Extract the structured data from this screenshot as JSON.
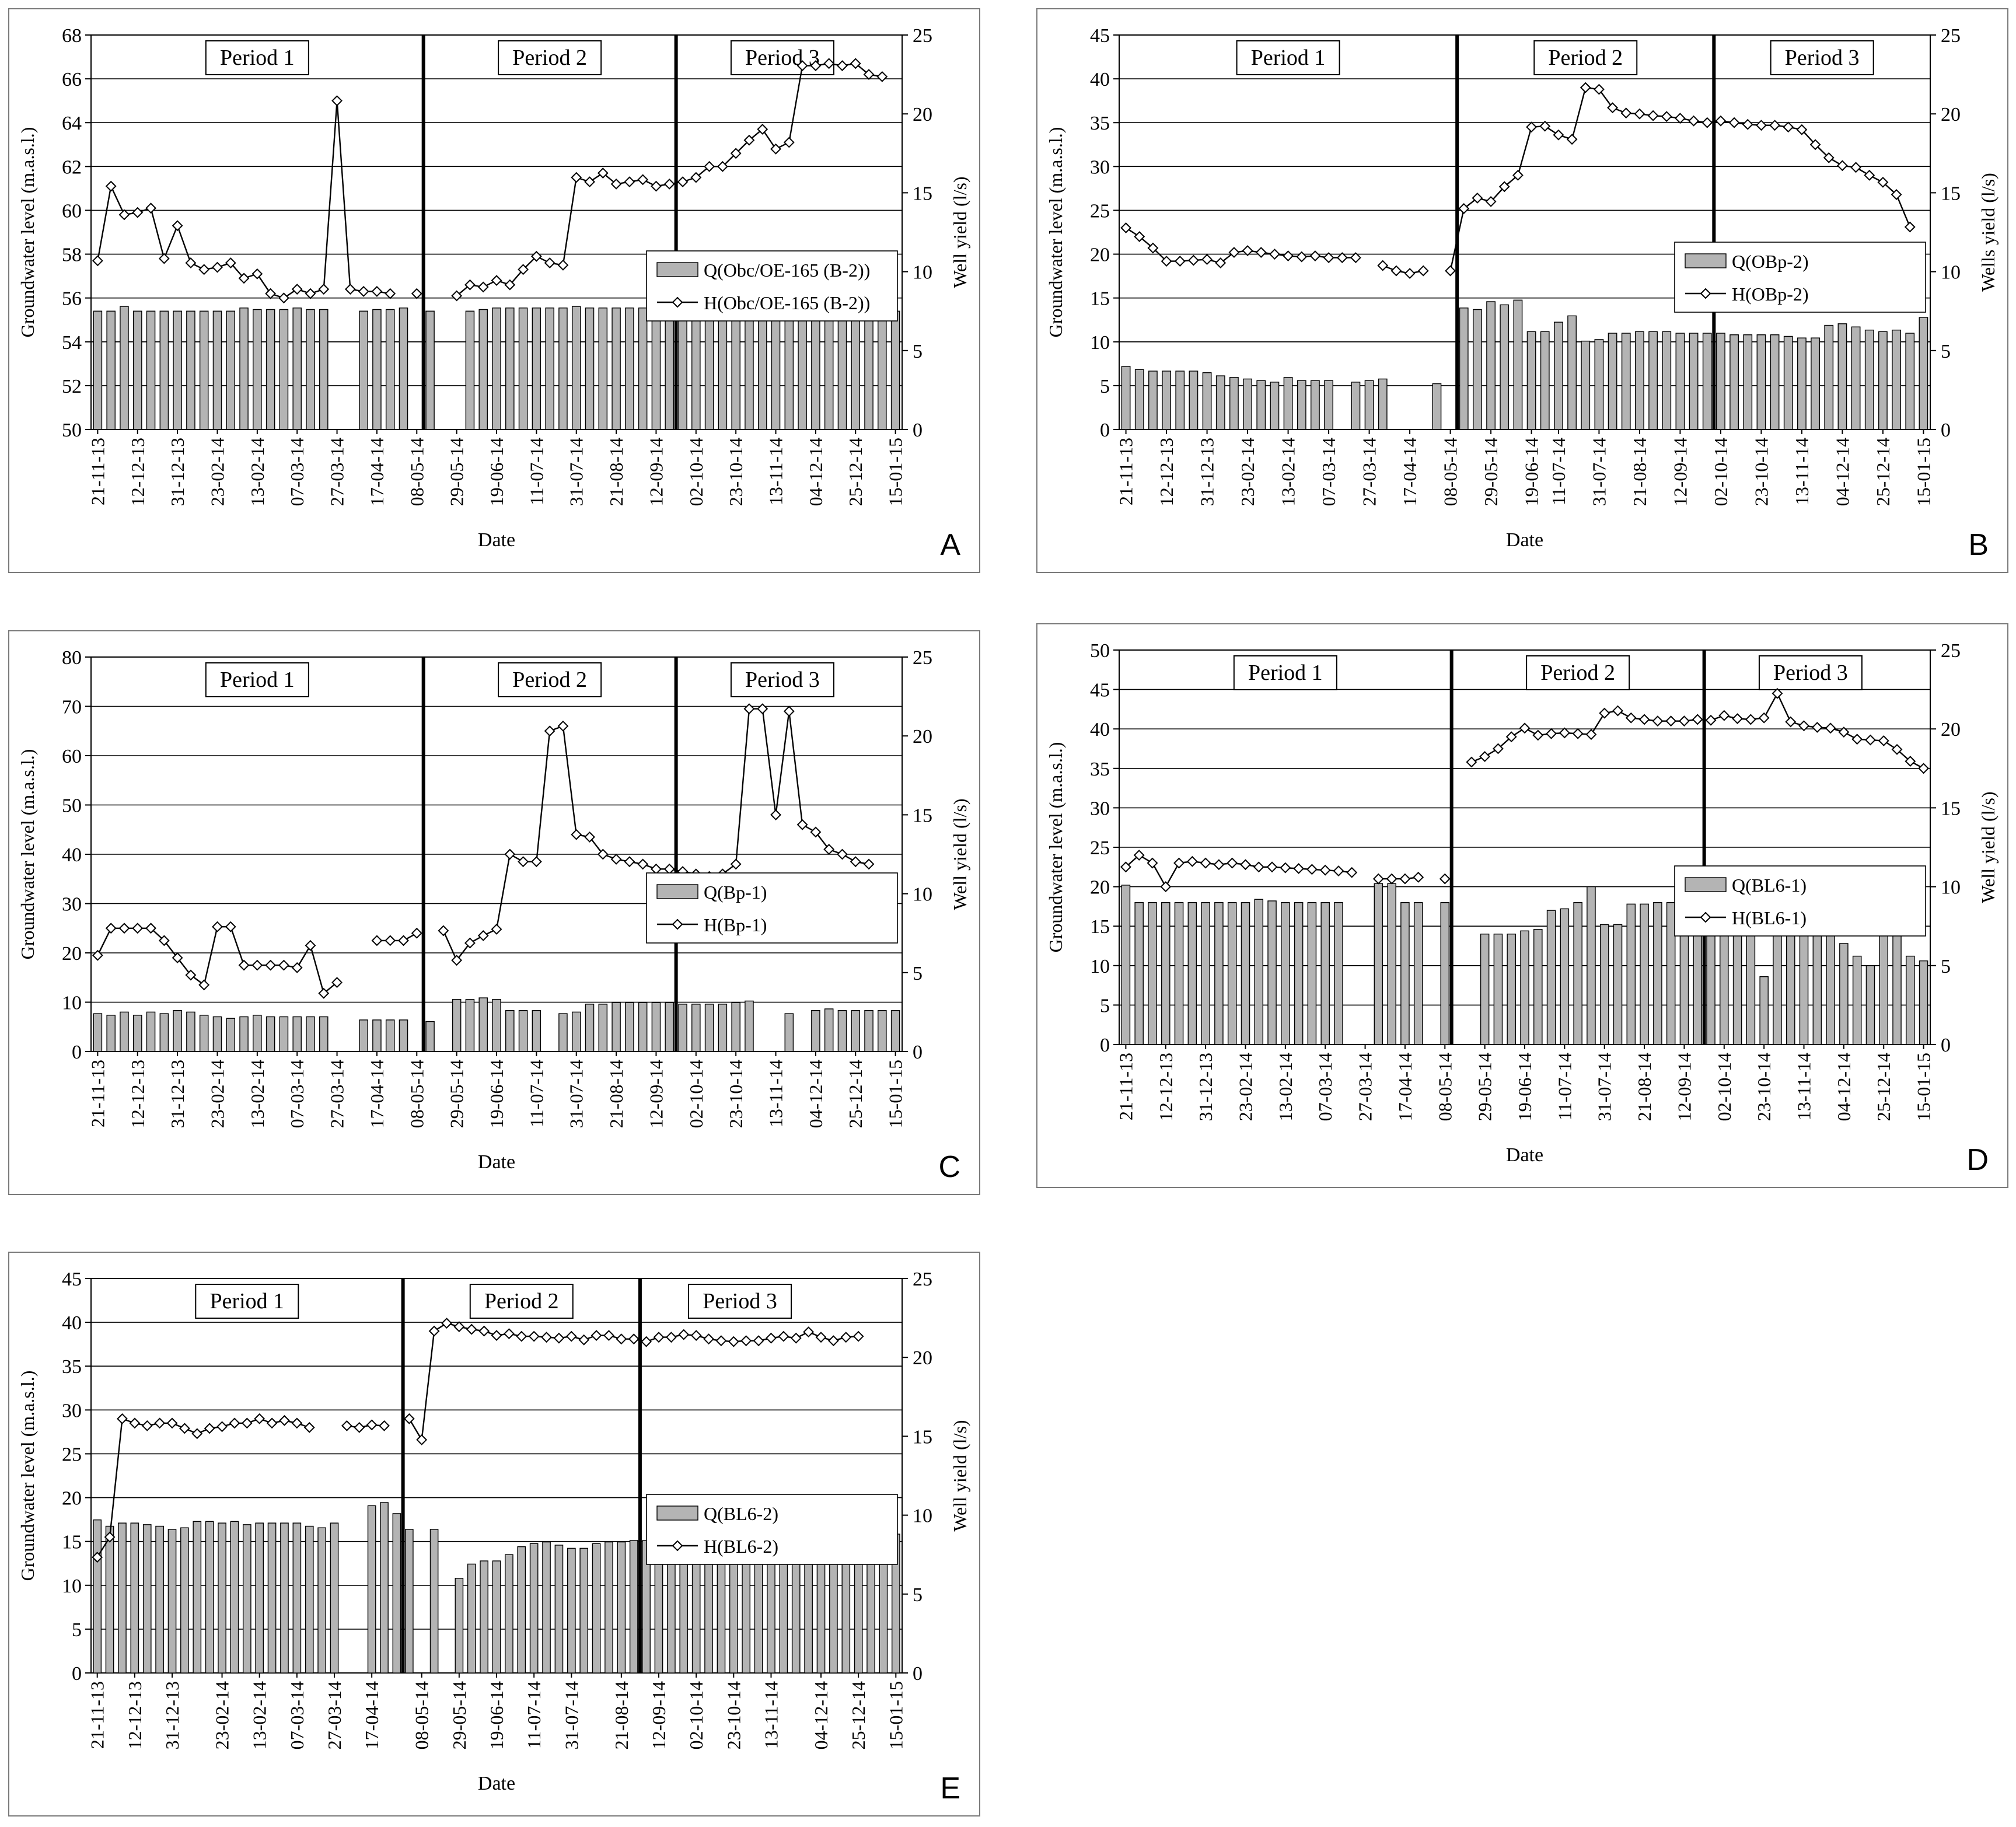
{
  "chart_data": [
    {
      "type": "bar+line",
      "panel_letter": "A",
      "xlabel": "Date",
      "ylabel_left": "Groundwater level (m.a.s.l.)",
      "ylabel_right": "Well yield (l/s)",
      "ylim_left": [
        50,
        68
      ],
      "yticks_left": [
        50,
        52,
        54,
        56,
        58,
        60,
        62,
        64,
        66,
        68
      ],
      "ylim_right": [
        0,
        25
      ],
      "yticks_right": [
        0,
        5,
        10,
        15,
        20,
        25
      ],
      "grid": "horizontal",
      "legend_position": "right-middle",
      "x_tick_labels": [
        "21-11-13",
        "12-12-13",
        "31-12-13",
        "23-02-14",
        "13-02-14",
        "07-03-14",
        "27-03-14",
        "17-04-14",
        "08-05-14",
        "29-05-14",
        "19-06-14",
        "11-07-14",
        "31-07-14",
        "21-08-14",
        "12-09-14",
        "02-10-14",
        "23-10-14",
        "13-11-14",
        "04-12-14",
        "25-12-14",
        "15-01-15"
      ],
      "periods": [
        {
          "label": "Period 1",
          "x_end": 24.5
        },
        {
          "label": "Period 2",
          "x_end": 43.5
        },
        {
          "label": "Period 3",
          "x_end": 59.5
        }
      ],
      "series": [
        {
          "name": "Q(Obc/OE-165 (B-2))",
          "kind": "bar",
          "axis": "right",
          "values": [
            7.5,
            7.5,
            7.8,
            7.5,
            7.5,
            7.5,
            7.5,
            7.5,
            7.5,
            7.5,
            7.5,
            7.7,
            7.6,
            7.6,
            7.6,
            7.7,
            7.6,
            7.6,
            null,
            null,
            7.5,
            7.6,
            7.6,
            7.7,
            null,
            7.5,
            null,
            null,
            7.5,
            7.6,
            7.7,
            7.7,
            7.7,
            7.7,
            7.7,
            7.7,
            7.8,
            7.7,
            7.7,
            7.7,
            7.7,
            7.7,
            7.7,
            7.7,
            7.7,
            7.8,
            7.8,
            7.8,
            7.9,
            7.8,
            7.7,
            7.9,
            7.8,
            7.3,
            7.6,
            7.6,
            7.6,
            7.5,
            7.5,
            7.7,
            7.5
          ]
        },
        {
          "name": "H(Obc/OE-165 (B-2))",
          "kind": "line",
          "axis": "left",
          "values": [
            57.7,
            61.1,
            59.8,
            59.9,
            60.1,
            57.8,
            59.3,
            57.6,
            57.3,
            57.4,
            57.6,
            56.9,
            57.1,
            56.2,
            56,
            56.4,
            56.2,
            56.4,
            65,
            56.4,
            56.3,
            56.3,
            56.2,
            null,
            56.2,
            null,
            null,
            56.1,
            56.6,
            56.5,
            56.8,
            56.6,
            57.3,
            57.9,
            57.6,
            57.5,
            61.5,
            61.3,
            61.7,
            61.2,
            61.3,
            61.4,
            61.1,
            61.2,
            61.3,
            61.5,
            62,
            62,
            62.6,
            63.2,
            63.7,
            62.8,
            63.1,
            66.6,
            66.6,
            66.7,
            66.6,
            66.7,
            66.2,
            66.1
          ]
        }
      ]
    },
    {
      "type": "bar+line",
      "panel_letter": "B",
      "xlabel": "Date",
      "ylabel_left": "Groundwater level (m.a.s.l.)",
      "ylabel_right": "Wells yield (l/s)",
      "ylim_left": [
        0,
        45
      ],
      "yticks_left": [
        0,
        5,
        10,
        15,
        20,
        25,
        30,
        35,
        40,
        45
      ],
      "ylim_right": [
        0,
        25
      ],
      "yticks_right": [
        0,
        5,
        10,
        15,
        20,
        25
      ],
      "grid": "horizontal",
      "legend_position": "right-upper",
      "x_tick_labels": [
        "21-11-13",
        "12-12-13",
        "31-12-13",
        "23-02-14",
        "13-02-14",
        "07-03-14",
        "27-03-14",
        "17-04-14",
        "08-05-14",
        "29-05-14",
        "19-06-14",
        "11-07-14",
        "31-07-14",
        "21-08-14",
        "12-09-14",
        "02-10-14",
        "23-10-14",
        "13-11-14",
        "04-12-14",
        "25-12-14",
        "15-01-15"
      ],
      "periods": [
        {
          "label": "Period 1",
          "x_end": 24.5
        },
        {
          "label": "Period 2",
          "x_end": 43.5
        },
        {
          "label": "Period 3",
          "x_end": 59.5
        }
      ],
      "series": [
        {
          "name": "Q(OBp-2)",
          "kind": "bar",
          "axis": "right",
          "values": [
            4,
            3.8,
            3.7,
            3.7,
            3.7,
            3.7,
            3.6,
            3.4,
            3.3,
            3.2,
            3.1,
            3,
            3.3,
            3.1,
            3.1,
            3.1,
            null,
            3,
            3.1,
            3.2,
            null,
            null,
            null,
            2.9,
            null,
            7.7,
            7.6,
            8.1,
            7.9,
            8.2,
            6.2,
            6.2,
            6.8,
            7.2,
            5.6,
            5.7,
            6.1,
            6.1,
            6.2,
            6.2,
            6.2,
            6.1,
            6.1,
            6.1,
            6.1,
            6,
            6,
            6,
            6,
            5.9,
            5.8,
            5.8,
            6.6,
            6.7,
            6.5,
            6.3,
            6.2,
            6.3,
            6.1,
            7.1
          ]
        },
        {
          "name": "H(OBp-2)",
          "kind": "line",
          "axis": "left",
          "values": [
            23,
            22,
            20.7,
            19.2,
            19.2,
            19.3,
            19.4,
            19,
            20.2,
            20.4,
            20.2,
            20,
            19.8,
            19.7,
            19.8,
            19.6,
            19.6,
            19.6,
            null,
            18.7,
            18.1,
            17.8,
            18.1,
            null,
            18.1,
            25.2,
            26.4,
            26,
            27.7,
            29,
            34.5,
            34.6,
            33.6,
            33.1,
            39,
            38.8,
            36.7,
            36.1,
            36,
            35.8,
            35.7,
            35.5,
            35.2,
            35,
            35.2,
            35,
            34.8,
            34.7,
            34.7,
            34.5,
            34.2,
            32.5,
            31,
            30.1,
            29.9,
            29,
            28.2,
            26.8,
            23.1
          ]
        }
      ]
    },
    {
      "type": "bar+line",
      "panel_letter": "C",
      "xlabel": "Date",
      "ylabel_left": "Groundwater level (m.a.s.l.)",
      "ylabel_right": "Well yield (l/s)",
      "ylim_left": [
        0,
        80
      ],
      "yticks_left": [
        0,
        10,
        20,
        30,
        40,
        50,
        60,
        70,
        80
      ],
      "ylim_right": [
        0,
        25
      ],
      "yticks_right": [
        0,
        5,
        10,
        15,
        20,
        25
      ],
      "grid": "horizontal",
      "legend_position": "right-middle",
      "x_tick_labels": [
        "21-11-13",
        "12-12-13",
        "31-12-13",
        "23-02-14",
        "13-02-14",
        "07-03-14",
        "27-03-14",
        "17-04-14",
        "08-05-14",
        "29-05-14",
        "19-06-14",
        "11-07-14",
        "31-07-14",
        "21-08-14",
        "12-09-14",
        "02-10-14",
        "23-10-14",
        "13-11-14",
        "04-12-14",
        "25-12-14",
        "15-01-15"
      ],
      "periods": [
        {
          "label": "Period 1",
          "x_end": 24.5
        },
        {
          "label": "Period 2",
          "x_end": 43.5
        },
        {
          "label": "Period 3",
          "x_end": 59.5
        }
      ],
      "series": [
        {
          "name": "Q(Bp-1)",
          "kind": "bar",
          "axis": "right",
          "values": [
            2.4,
            2.3,
            2.5,
            2.3,
            2.5,
            2.4,
            2.6,
            2.5,
            2.3,
            2.2,
            2.1,
            2.2,
            2.3,
            2.2,
            2.2,
            2.2,
            2.2,
            2.2,
            null,
            null,
            2,
            2,
            2,
            2,
            null,
            1.9,
            null,
            3.3,
            3.3,
            3.4,
            3.3,
            2.6,
            2.6,
            2.6,
            null,
            2.4,
            2.5,
            3,
            3,
            3.1,
            3.1,
            3.1,
            3.1,
            3.1,
            3,
            3,
            3,
            3,
            3.1,
            3.2,
            null,
            null,
            2.4,
            null,
            2.6,
            2.7,
            2.6,
            2.6,
            2.6,
            2.6,
            2.6
          ]
        },
        {
          "name": "H(Bp-1)",
          "kind": "line",
          "axis": "left",
          "values": [
            19.5,
            25,
            25,
            25,
            25,
            22.5,
            19,
            15.5,
            13.5,
            25.3,
            25.3,
            17.5,
            17.5,
            17.5,
            17.5,
            17,
            21.5,
            11.8,
            14,
            null,
            null,
            22.5,
            22.5,
            22.5,
            24,
            null,
            24.5,
            18.5,
            22,
            23.5,
            24.8,
            40,
            38.5,
            38.5,
            65,
            66,
            44,
            43.5,
            40,
            39,
            38.5,
            38,
            37,
            37,
            36.5,
            36,
            35.5,
            36,
            38,
            69.5,
            69.5,
            48,
            69,
            46,
            44.5,
            41,
            40,
            38.5,
            38
          ]
        }
      ]
    },
    {
      "type": "bar+line",
      "panel_letter": "D",
      "xlabel": "Date",
      "ylabel_left": "Groundwater level (m.a.s.l.)",
      "ylabel_right": "Well yield (l/s)",
      "ylim_left": [
        0,
        50
      ],
      "yticks_left": [
        0,
        5,
        10,
        15,
        20,
        25,
        30,
        35,
        40,
        45,
        50
      ],
      "ylim_right": [
        0,
        25
      ],
      "yticks_right": [
        0,
        5,
        10,
        15,
        20,
        25
      ],
      "grid": "horizontal",
      "legend_position": "right-middle",
      "x_tick_labels": [
        "21-11-13",
        "12-12-13",
        "31-12-13",
        "23-02-14",
        "13-02-14",
        "07-03-14",
        "27-03-14",
        "17-04-14",
        "08-05-14",
        "29-05-14",
        "19-06-14",
        "11-07-14",
        "31-07-14",
        "21-08-14",
        "12-09-14",
        "02-10-14",
        "23-10-14",
        "13-11-14",
        "04-12-14",
        "25-12-14",
        "15-01-15"
      ],
      "periods": [
        {
          "label": "Period 1",
          "x_end": 24.5
        },
        {
          "label": "Period 2",
          "x_end": 43.5
        },
        {
          "label": "Period 3",
          "x_end": 59.5
        }
      ],
      "series": [
        {
          "name": "Q(BL6-1)",
          "kind": "bar",
          "axis": "right",
          "values": [
            10.1,
            9,
            9,
            9,
            9,
            9,
            9,
            9,
            9,
            9,
            9.2,
            9.1,
            9,
            9,
            9,
            9,
            9,
            null,
            null,
            10.2,
            10.2,
            9,
            9,
            null,
            9,
            null,
            null,
            7,
            7,
            7,
            7.2,
            7.3,
            8.5,
            8.6,
            9,
            10,
            7.6,
            7.6,
            8.9,
            8.9,
            9,
            9,
            8.9,
            8.9,
            8.9,
            8.9,
            8.8,
            8.7,
            4.3,
            8,
            8.1,
            7.5,
            7.6,
            7.1,
            6.4,
            5.6,
            5,
            8,
            8,
            5.6,
            5.3
          ]
        },
        {
          "name": "H(BL6-1)",
          "kind": "line",
          "axis": "left",
          "values": [
            22.5,
            24,
            23,
            20,
            23,
            23.2,
            23,
            22.8,
            23,
            22.8,
            22.5,
            22.5,
            22.4,
            22.3,
            22.2,
            22.1,
            22,
            21.8,
            null,
            21,
            21,
            21,
            21.2,
            null,
            21,
            null,
            35.8,
            36.5,
            37.5,
            39,
            40.1,
            39.2,
            39.4,
            39.5,
            39.4,
            39.3,
            42,
            42.3,
            41.4,
            41.2,
            41,
            41,
            41,
            41.2,
            41.1,
            41.7,
            41.3,
            41.2,
            41.4,
            44.5,
            40.9,
            40.4,
            40.2,
            40.1,
            39.6,
            38.7,
            38.6,
            38.5,
            37.4,
            35.9,
            35
          ]
        }
      ]
    },
    {
      "type": "bar+line",
      "panel_letter": "E",
      "xlabel": "Date",
      "ylabel_left": "Groundwater level (m.a.s.l.)",
      "ylabel_right": "Well yield (l/s)",
      "ylim_left": [
        0,
        45
      ],
      "yticks_left": [
        0,
        5,
        10,
        15,
        20,
        25,
        30,
        35,
        40,
        45
      ],
      "ylim_right": [
        0,
        25
      ],
      "yticks_right": [
        0,
        5,
        10,
        15,
        20,
        25
      ],
      "grid": "horizontal",
      "legend_position": "right-middle",
      "x_tick_labels": [
        "21-11-13",
        "12-12-13",
        "31-12-13",
        "23-02-14",
        "13-02-14",
        "07-03-14",
        "27-03-14",
        "17-04-14",
        "08-05-14",
        "29-05-14",
        "19-06-14",
        "11-07-14",
        "31-07-14",
        "21-08-14",
        "12-09-14",
        "02-10-14",
        "23-10-14",
        "13-11-14",
        "04-12-14",
        "25-12-14",
        "15-01-15"
      ],
      "periods": [
        {
          "label": "Period 1",
          "x_end": 24.5
        },
        {
          "label": "Period 2",
          "x_end": 43.5
        },
        {
          "label": "Period 3",
          "x_end": 59.5
        }
      ],
      "series": [
        {
          "name": "Q(BL6-2)",
          "kind": "bar",
          "axis": "right",
          "values": [
            9.7,
            9.3,
            9.5,
            9.5,
            9.4,
            9.3,
            9.1,
            9.2,
            9.6,
            9.6,
            9.5,
            9.6,
            9.4,
            9.5,
            9.5,
            9.5,
            9.5,
            9.3,
            9.2,
            9.5,
            null,
            null,
            10.6,
            10.8,
            10.1,
            9.1,
            null,
            9.1,
            null,
            6,
            6.9,
            7.1,
            7.1,
            7.5,
            8,
            8.2,
            8.3,
            8.1,
            7.9,
            7.9,
            8.2,
            8.3,
            8.3,
            8.4,
            8.4,
            8.4,
            8.4,
            8.4,
            8.4,
            8.2,
            8.3,
            8.3,
            8.1,
            7.6,
            8.3,
            8.4,
            8.3,
            8.3,
            8.6,
            8.6,
            8,
            8,
            8.1,
            8.1,
            8.8
          ]
        },
        {
          "name": "H(BL6-2)",
          "kind": "line",
          "axis": "left",
          "values": [
            13.2,
            15.5,
            29,
            28.5,
            28.2,
            28.5,
            28.5,
            27.9,
            27.3,
            27.9,
            28.1,
            28.5,
            28.5,
            29,
            28.5,
            28.8,
            28.5,
            28,
            null,
            null,
            28.2,
            28,
            28.3,
            28.2,
            null,
            29,
            26.6,
            39,
            39.9,
            39.5,
            39.2,
            39,
            38.5,
            38.7,
            38.4,
            38.4,
            38.3,
            38.2,
            38.4,
            38,
            38.5,
            38.5,
            38.1,
            38.1,
            37.8,
            38.3,
            38.3,
            38.6,
            38.5,
            38.1,
            37.9,
            37.8,
            37.9,
            37.9,
            38.2,
            38.4,
            38.2,
            38.9,
            38.3,
            37.9,
            38.3,
            38.4
          ]
        }
      ]
    }
  ]
}
